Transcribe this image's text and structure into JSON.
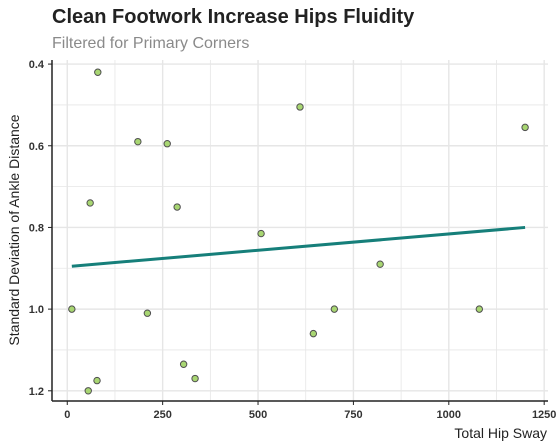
{
  "chart_data": {
    "type": "scatter",
    "title": "Clean Footwork Increase Hips Fluidity",
    "subtitle": "Filtered for Primary Corners",
    "xlabel": "Total Hip Sway",
    "ylabel": "Standard Deviation of Ankle Distance",
    "xlim": [
      -40,
      1260
    ],
    "ylim": [
      0.39,
      1.225
    ],
    "y_reversed": true,
    "x_ticks": [
      0,
      250,
      500,
      750,
      1000,
      1250
    ],
    "y_ticks": [
      0.4,
      0.6,
      0.8,
      1.0,
      1.2
    ],
    "x_tick_labels": [
      "0",
      "250",
      "500",
      "750",
      "1000",
      "1250"
    ],
    "y_tick_labels": [
      "0.4",
      "0.6",
      "0.8",
      "1.0",
      "1.2"
    ],
    "grid": true,
    "points": [
      {
        "x": 80,
        "y": 0.42
      },
      {
        "x": 185,
        "y": 0.59
      },
      {
        "x": 262,
        "y": 0.595
      },
      {
        "x": 610,
        "y": 0.505
      },
      {
        "x": 1200,
        "y": 0.555
      },
      {
        "x": 60,
        "y": 0.74
      },
      {
        "x": 288,
        "y": 0.75
      },
      {
        "x": 508,
        "y": 0.815
      },
      {
        "x": 820,
        "y": 0.89
      },
      {
        "x": 12,
        "y": 1.0
      },
      {
        "x": 210,
        "y": 1.01
      },
      {
        "x": 700,
        "y": 1.0
      },
      {
        "x": 1080,
        "y": 1.0
      },
      {
        "x": 645,
        "y": 1.06
      },
      {
        "x": 305,
        "y": 1.135
      },
      {
        "x": 335,
        "y": 1.17
      },
      {
        "x": 78,
        "y": 1.175
      },
      {
        "x": 55,
        "y": 1.2
      }
    ],
    "trend_line": {
      "x": [
        12,
        1200
      ],
      "y": [
        0.895,
        0.8
      ]
    },
    "colors": {
      "point_fill": "#a8d672",
      "point_stroke": "#4f4f4f",
      "trend_line": "#167f7a",
      "grid": "#e6e6e6",
      "axis": "#222222"
    }
  }
}
